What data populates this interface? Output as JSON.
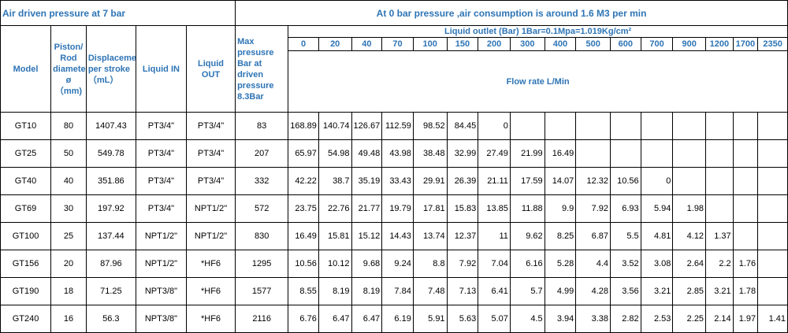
{
  "caption_left": "Air driven pressure at 7 bar",
  "caption_right": "At 0 bar pressure ,air consumption is around 1.6 M3 per min",
  "headers": {
    "model": "Model",
    "piston": "Piston/ Rod diameter ø （mm)",
    "displacement": "Displacement per stroke （mL）",
    "liquid_in": "Liquid IN",
    "liquid_out": "Liquid OUT",
    "max_pressure": "Max presusre Bar at driven pressure 8.3Bar",
    "liquid_outlet": "Liquid outlet (Bar) 1Bar=0.1Mpa=1.019Kg/cm²",
    "flow_rate": "Flow rate L/Min"
  },
  "pressures": [
    "0",
    "20",
    "40",
    "70",
    "100",
    "150",
    "200",
    "300",
    "400",
    "500",
    "600",
    "700",
    "900",
    "1200",
    "1700",
    "2350"
  ],
  "rows": [
    {
      "model": "GT10",
      "piston": "80",
      "disp": "1407.43",
      "in": "PT3/4\"",
      "out": "PT3/4\"",
      "max": "83",
      "flows": [
        "168.89",
        "140.74",
        "126.67",
        "112.59",
        "98.52",
        "84.45",
        "0",
        "",
        "",
        "",
        "",
        "",
        "",
        "",
        "",
        ""
      ]
    },
    {
      "model": "GT25",
      "piston": "50",
      "disp": "549.78",
      "in": "PT3/4\"",
      "out": "PT3/4\"",
      "max": "207",
      "flows": [
        "65.97",
        "54.98",
        "49.48",
        "43.98",
        "38.48",
        "32.99",
        "27.49",
        "21.99",
        "16.49",
        "",
        "",
        "",
        "",
        "",
        "",
        ""
      ]
    },
    {
      "model": "GT40",
      "piston": "40",
      "disp": "351.86",
      "in": "PT3/4\"",
      "out": "PT3/4\"",
      "max": "332",
      "flows": [
        "42.22",
        "38.7",
        "35.19",
        "33.43",
        "29.91",
        "26.39",
        "21.11",
        "17.59",
        "14.07",
        "12.32",
        "10.56",
        "0",
        "",
        "",
        "",
        ""
      ]
    },
    {
      "model": "GT69",
      "piston": "30",
      "disp": "197.92",
      "in": "PT3/4\"",
      "out": "NPT1/2\"",
      "max": "572",
      "flows": [
        "23.75",
        "22.76",
        "21.77",
        "19.79",
        "17.81",
        "15.83",
        "13.85",
        "11.88",
        "9.9",
        "7.92",
        "6.93",
        "5.94",
        "1.98",
        "",
        "",
        ""
      ]
    },
    {
      "model": "GT100",
      "piston": "25",
      "disp": "137.44",
      "in": "NPT1/2\"",
      "out": "NPT1/2\"",
      "max": "830",
      "flows": [
        "16.49",
        "15.81",
        "15.12",
        "14.43",
        "13.74",
        "12.37",
        "11",
        "9.62",
        "8.25",
        "6.87",
        "5.5",
        "4.81",
        "4.12",
        "1.37",
        "",
        ""
      ]
    },
    {
      "model": "GT156",
      "piston": "20",
      "disp": "87.96",
      "in": "NPT1/2\"",
      "out": "*HF6",
      "max": "1295",
      "flows": [
        "10.56",
        "10.12",
        "9.68",
        "9.24",
        "8.8",
        "7.92",
        "7.04",
        "6.16",
        "5.28",
        "4.4",
        "3.52",
        "3.08",
        "2.64",
        "2.2",
        "1.76",
        ""
      ]
    },
    {
      "model": "GT190",
      "piston": "18",
      "disp": "71.25",
      "in": "NPT3/8\"",
      "out": "*HF6",
      "max": "1577",
      "flows": [
        "8.55",
        "8.19",
        "8.19",
        "7.84",
        "7.48",
        "7.13",
        "6.41",
        "5.7",
        "4.99",
        "4.28",
        "3.56",
        "3.21",
        "2.85",
        "3.21",
        "1.78",
        ""
      ]
    },
    {
      "model": "GT240",
      "piston": "16",
      "disp": "56.3",
      "in": "NPT3/8\"",
      "out": "*HF6",
      "max": "2116",
      "flows": [
        "6.76",
        "6.47",
        "6.47",
        "6.19",
        "5.91",
        "5.63",
        "5.07",
        "4.5",
        "3.94",
        "3.38",
        "2.82",
        "2.53",
        "2.25",
        "2.14",
        "1.97",
        "1.41"
      ]
    }
  ]
}
